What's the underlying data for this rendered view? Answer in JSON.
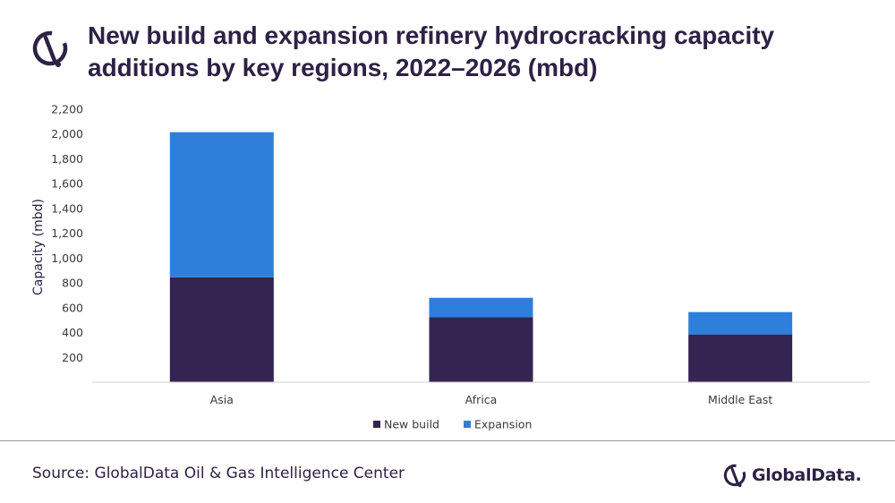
{
  "title": "New build and expansion refinery hydrocracking capacity additions by key regions, 2022–2026 (mbd)",
  "source": "Source: GlobalData Oil & Gas Intelligence Center",
  "brand": {
    "name": "GlobalData.",
    "icon": "globaldata-logo-icon"
  },
  "colors": {
    "title": "#2d2245",
    "new_build": "#342452",
    "expansion": "#2e7fd9"
  },
  "chart_data": {
    "type": "bar",
    "stacked": true,
    "categories": [
      "Asia",
      "Africa",
      "Middle East"
    ],
    "series": [
      {
        "name": "New build",
        "values": [
          845,
          525,
          385
        ],
        "color": "#342452"
      },
      {
        "name": "Expansion",
        "values": [
          1170,
          155,
          180
        ],
        "color": "#2e7fd9"
      }
    ],
    "ylabel": "Capacity (mbd)",
    "xlabel": "",
    "ylim": [
      0,
      2200
    ],
    "yticks": [
      200,
      400,
      600,
      800,
      1000,
      1200,
      1400,
      1600,
      1800,
      2000,
      2200
    ],
    "ytick_labels": [
      "200",
      "400",
      "600",
      "800",
      "1,000",
      "1,200",
      "1,400",
      "1,600",
      "1,800",
      "2,000",
      "2,200"
    ],
    "grid": false,
    "legend": "bottom-center"
  }
}
